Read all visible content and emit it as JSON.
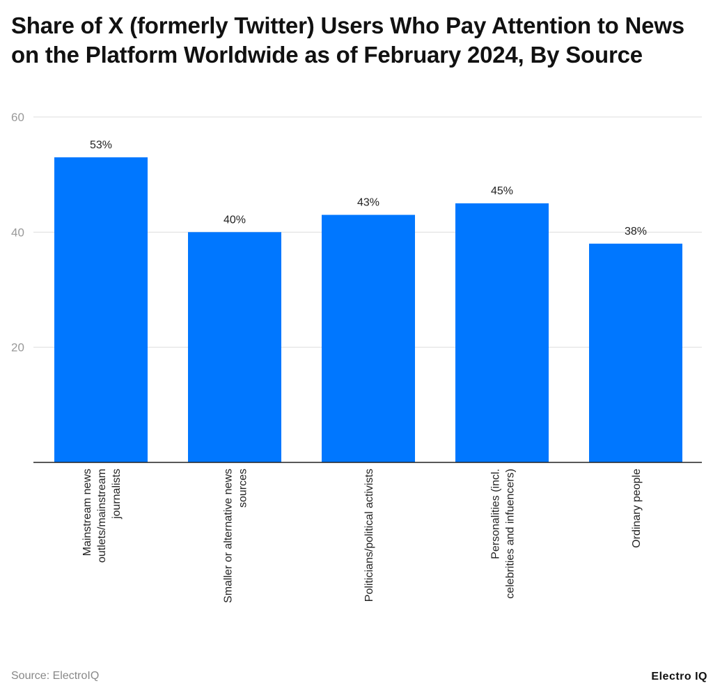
{
  "chart_data": {
    "type": "bar",
    "title": "Share of X (formerly Twitter) Users Who Pay Attention to News on the Platform Worldwide as of February 2024, By Source",
    "categories": [
      "Mainstream news outlets/mainstream journalists",
      "Smaller or alternative news sources",
      "Politicians/political activists",
      "Personalities (incl. celebrities and infuencers)",
      "Ordinary people"
    ],
    "category_lines": [
      [
        "Mainstream news",
        "outlets/mainstream",
        "journalists"
      ],
      [
        "Smaller or alternative news",
        "sources"
      ],
      [
        "Politicians/political activists"
      ],
      [
        "Personalities (incl.",
        "celebrities and infuencers)"
      ],
      [
        "Ordinary people"
      ]
    ],
    "values": [
      53,
      40,
      43,
      45,
      38
    ],
    "data_labels": [
      "53%",
      "40%",
      "43%",
      "45%",
      "38%"
    ],
    "xlabel": "",
    "ylabel": "",
    "ylim": [
      0,
      60
    ],
    "yticks": [
      20,
      40,
      60
    ],
    "grid": true,
    "bar_color": "#0077FF"
  },
  "footer": {
    "source": "Source: ElectroIQ",
    "logo": "Electro IQ"
  }
}
